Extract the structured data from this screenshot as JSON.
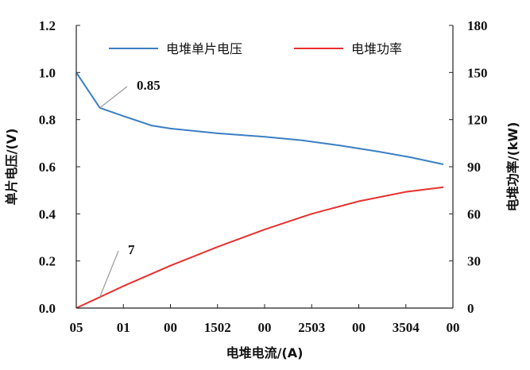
{
  "chart_data": {
    "type": "line",
    "xlabel": "电堆电流/(A)",
    "ylabel_left": "单片电压/(V)",
    "ylabel_right": "电堆功率/(kW)",
    "x_tick_labels": [
      "05",
      "01",
      "00",
      "1502",
      "00",
      "2503",
      "00",
      "3504",
      "00"
    ],
    "x_range": [
      0,
      400
    ],
    "ylim_left": [
      0,
      1.2
    ],
    "yticks_left": [
      "0.0",
      "0.2",
      "0.4",
      "0.6",
      "0.8",
      "1.0",
      "1.2"
    ],
    "ylim_right": [
      0,
      180
    ],
    "yticks_right": [
      "0",
      "30",
      "60",
      "90",
      "120",
      "150",
      "180"
    ],
    "grid": false,
    "legend_position": "top",
    "series": [
      {
        "name": "电堆单片电压",
        "axis": "left",
        "color": "#3a7fc4",
        "x": [
          0,
          25,
          50,
          80,
          100,
          150,
          200,
          240,
          280,
          320,
          355,
          390
        ],
        "y": [
          1.0,
          0.85,
          0.815,
          0.775,
          0.762,
          0.742,
          0.727,
          0.712,
          0.69,
          0.665,
          0.64,
          0.61
        ]
      },
      {
        "name": "电堆功率",
        "axis": "right",
        "color": "#e8302e",
        "x": [
          0,
          25,
          50,
          100,
          150,
          200,
          250,
          300,
          350,
          390
        ],
        "y": [
          0,
          7,
          14,
          27,
          39,
          50,
          60,
          68,
          74,
          77
        ]
      }
    ],
    "annotations": [
      {
        "text": "0.85",
        "x": 25,
        "y": 0.85,
        "axis": "left"
      },
      {
        "text": "7",
        "x": 25,
        "y": 7,
        "axis": "right"
      }
    ]
  }
}
